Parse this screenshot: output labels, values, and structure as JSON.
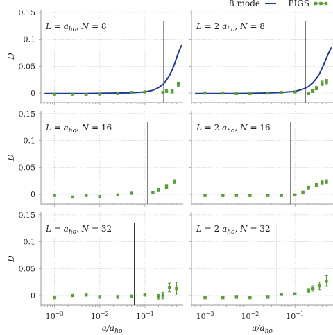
{
  "legend": {
    "model_label": "8 mode",
    "data_label": "PIGS"
  },
  "colors": {
    "model_line": "#1f3a93",
    "data_marker": "#5a9e3a",
    "cutoff_line": "#333333",
    "grid": "#c8c8c8",
    "frame": "#9a9a9a"
  },
  "axis_titles": {
    "y": "D",
    "x": "a/a_ho"
  },
  "x_ticks": [
    {
      "value": 0.001,
      "base": "10",
      "exp": "−3"
    },
    {
      "value": 0.01,
      "base": "10",
      "exp": "−2"
    },
    {
      "value": 0.1,
      "base": "10",
      "exp": "−1"
    }
  ],
  "y_ticks": [
    {
      "value": 0,
      "label": "0"
    },
    {
      "value": 0.05,
      "label": "0.05"
    },
    {
      "value": 0.1,
      "label": "0.1"
    },
    {
      "value": 0.15,
      "label": "0.15"
    }
  ],
  "chart_data": [
    {
      "type": "scatter",
      "label": "L = a_ho, N = 8",
      "xscale": "log",
      "xlim": [
        0.0005,
        0.7
      ],
      "ylim": [
        -0.018,
        0.155
      ],
      "grid": true,
      "cutoff_x": 0.26,
      "series": [
        {
          "name": "8 mode",
          "type": "line",
          "x": [
            0.0006,
            0.005,
            0.02,
            0.05,
            0.1,
            0.15,
            0.2,
            0.25,
            0.3,
            0.35,
            0.4,
            0.45,
            0.5,
            0.55,
            0.6,
            0.65
          ],
          "y": [
            -0.001,
            -0.0008,
            0.0,
            0.0005,
            0.002,
            0.005,
            0.01,
            0.016,
            0.024,
            0.033,
            0.043,
            0.054,
            0.065,
            0.075,
            0.083,
            0.089
          ]
        },
        {
          "name": "PIGS",
          "type": "scatter",
          "x": [
            0.001,
            0.0025,
            0.005,
            0.01,
            0.025,
            0.05,
            0.1,
            0.25,
            0.3,
            0.4,
            0.55
          ],
          "y": [
            -0.002,
            -0.002,
            -0.003,
            -0.002,
            -0.001,
            0.001,
            0.002,
            0.001,
            0.004,
            0.003,
            0.016
          ],
          "err": [
            0.0015,
            0.0015,
            0.0015,
            0.0015,
            0.0015,
            0.0015,
            0.0015,
            0.002,
            0.003,
            0.003,
            0.004
          ]
        }
      ]
    },
    {
      "type": "scatter",
      "label": "L = 2 a_ho, N = 8",
      "xscale": "log",
      "xlim": [
        0.0005,
        0.7
      ],
      "ylim": [
        -0.018,
        0.155
      ],
      "grid": true,
      "cutoff_x": 0.17,
      "series": [
        {
          "name": "8 mode",
          "type": "line",
          "x": [
            0.0006,
            0.005,
            0.02,
            0.05,
            0.1,
            0.15,
            0.2,
            0.25,
            0.3,
            0.35,
            0.4,
            0.45,
            0.5,
            0.55,
            0.6,
            0.65
          ],
          "y": [
            -0.001,
            -0.0008,
            0.0,
            0.001,
            0.003,
            0.007,
            0.012,
            0.019,
            0.027,
            0.036,
            0.046,
            0.056,
            0.065,
            0.073,
            0.08,
            0.085
          ]
        },
        {
          "name": "PIGS",
          "type": "scatter",
          "x": [
            0.001,
            0.0025,
            0.005,
            0.01,
            0.025,
            0.05,
            0.1,
            0.2,
            0.25,
            0.3,
            0.4,
            0.5
          ],
          "y": [
            0.0,
            0.0,
            -0.001,
            -0.001,
            0.0,
            0.001,
            0.002,
            -0.001,
            0.004,
            0.009,
            0.018,
            0.021
          ],
          "err": [
            0.0015,
            0.0015,
            0.0015,
            0.0015,
            0.0015,
            0.0015,
            0.0015,
            0.002,
            0.003,
            0.003,
            0.004,
            0.004
          ]
        }
      ]
    },
    {
      "type": "scatter",
      "label": "L = a_ho, N = 16",
      "xscale": "log",
      "xlim": [
        0.0005,
        0.7
      ],
      "ylim": [
        -0.018,
        0.155
      ],
      "grid": true,
      "cutoff_x": 0.115,
      "series": [
        {
          "name": "PIGS",
          "type": "scatter",
          "x": [
            0.001,
            0.0025,
            0.005,
            0.01,
            0.025,
            0.05,
            0.15,
            0.2,
            0.3,
            0.45
          ],
          "y": [
            -0.002,
            -0.005,
            -0.002,
            -0.004,
            -0.001,
            0.002,
            0.003,
            0.008,
            0.014,
            0.023
          ],
          "err": [
            0.0015,
            0.0015,
            0.0015,
            0.0015,
            0.0015,
            0.0015,
            0.002,
            0.003,
            0.003,
            0.004
          ]
        }
      ]
    },
    {
      "type": "scatter",
      "label": "L = 2 a_ho, N = 16",
      "xscale": "log",
      "xlim": [
        0.0005,
        0.7
      ],
      "ylim": [
        -0.018,
        0.155
      ],
      "grid": true,
      "cutoff_x": 0.08,
      "series": [
        {
          "name": "PIGS",
          "type": "scatter",
          "x": [
            0.001,
            0.0025,
            0.005,
            0.01,
            0.025,
            0.05,
            0.1,
            0.15,
            0.2,
            0.3,
            0.4,
            0.5
          ],
          "y": [
            -0.002,
            -0.002,
            -0.002,
            -0.002,
            -0.002,
            -0.002,
            -0.001,
            0.004,
            0.012,
            0.017,
            0.022,
            0.023
          ],
          "err": [
            0.0015,
            0.0015,
            0.0015,
            0.0015,
            0.0015,
            0.0015,
            0.0015,
            0.002,
            0.003,
            0.003,
            0.004,
            0.004
          ]
        }
      ]
    },
    {
      "type": "scatter",
      "label": "L = a_ho, N = 32",
      "xscale": "log",
      "xlim": [
        0.0005,
        0.7
      ],
      "ylim": [
        -0.018,
        0.155
      ],
      "grid": true,
      "cutoff_x": 0.058,
      "series": [
        {
          "name": "PIGS",
          "type": "scatter",
          "x": [
            0.001,
            0.0025,
            0.005,
            0.01,
            0.025,
            0.05,
            0.1,
            0.2,
            0.25,
            0.35,
            0.5
          ],
          "y": [
            -0.004,
            0.0,
            0.001,
            -0.003,
            -0.003,
            -0.001,
            0.001,
            -0.003,
            0.0,
            0.015,
            0.013
          ],
          "err": [
            0.0015,
            0.0015,
            0.0015,
            0.0015,
            0.0015,
            0.0015,
            0.0015,
            0.005,
            0.006,
            0.008,
            0.012
          ]
        }
      ]
    },
    {
      "type": "scatter",
      "label": "L = 2 a_ho, N = 32",
      "xscale": "log",
      "xlim": [
        0.0005,
        0.7
      ],
      "ylim": [
        -0.018,
        0.155
      ],
      "grid": true,
      "cutoff_x": 0.04,
      "series": [
        {
          "name": "PIGS",
          "type": "scatter",
          "x": [
            0.001,
            0.0025,
            0.005,
            0.01,
            0.025,
            0.05,
            0.1,
            0.2,
            0.25,
            0.35,
            0.5
          ],
          "y": [
            -0.004,
            -0.004,
            -0.003,
            -0.004,
            -0.003,
            0.002,
            0.003,
            0.009,
            0.013,
            0.018,
            0.027
          ],
          "err": [
            0.0015,
            0.0015,
            0.0015,
            0.0015,
            0.0015,
            0.0015,
            0.002,
            0.004,
            0.005,
            0.007,
            0.01
          ]
        }
      ]
    }
  ]
}
